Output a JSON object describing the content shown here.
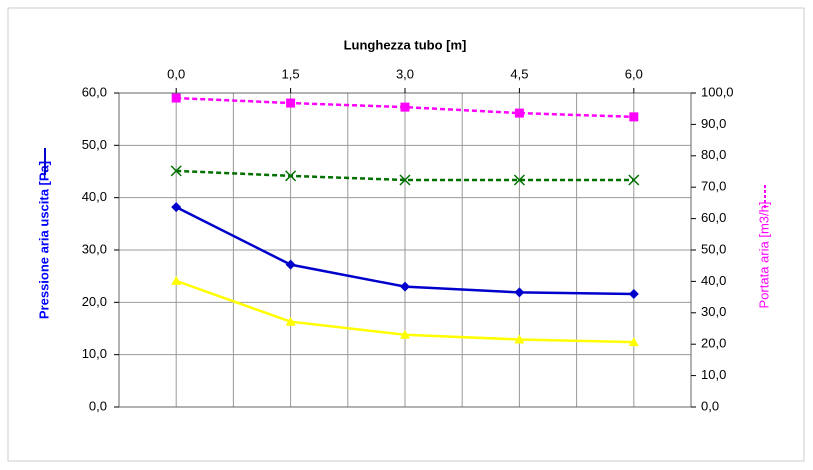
{
  "chart_data": {
    "type": "line",
    "xlabel": "Lunghezza tubo [m]",
    "ylabel": "Pressione aria uscita [Pa]",
    "y2label": "Portata aria [m3/h]",
    "x": [
      0,
      1.5,
      3,
      4.5,
      6
    ],
    "xlim": [
      -0.75,
      6.75
    ],
    "xticks": [
      {
        "value": 0,
        "label": "0,0"
      },
      {
        "value": 1.5,
        "label": "1,5"
      },
      {
        "value": 3,
        "label": "3,0"
      },
      {
        "value": 4.5,
        "label": "4,5"
      },
      {
        "value": 6,
        "label": "6,0"
      }
    ],
    "xminorgrid": [
      -0.75,
      0.75,
      2.25,
      3.75,
      5.25,
      6.75
    ],
    "ylim": [
      0,
      60
    ],
    "yticks": [
      {
        "value": 0,
        "label": "0,0"
      },
      {
        "value": 10,
        "label": "10,0"
      },
      {
        "value": 20,
        "label": "20,0"
      },
      {
        "value": 30,
        "label": "30,0"
      },
      {
        "value": 40,
        "label": "40,0"
      },
      {
        "value": 50,
        "label": "50,0"
      },
      {
        "value": 60,
        "label": "60,0"
      }
    ],
    "y2lim": [
      0,
      100
    ],
    "y2ticks": [
      {
        "value": 0,
        "label": "0,0"
      },
      {
        "value": 10,
        "label": "10,0"
      },
      {
        "value": 20,
        "label": "20,0"
      },
      {
        "value": 30,
        "label": "30,0"
      },
      {
        "value": 40,
        "label": "40,0"
      },
      {
        "value": 50,
        "label": "50,0"
      },
      {
        "value": 60,
        "label": "60,0"
      },
      {
        "value": 70,
        "label": "70,0"
      },
      {
        "value": 80,
        "label": "80,0"
      },
      {
        "value": 90,
        "label": "90,0"
      },
      {
        "value": 100,
        "label": "100,0"
      }
    ],
    "grid": true,
    "ylabel_color": "#0000ff",
    "y2label_color": "#ff00ff",
    "series": [
      {
        "color": "#ff00ff",
        "marker": "square",
        "dashed": true,
        "axis": "y2",
        "values": [
          98.4,
          96.8,
          95.5,
          93.6,
          92.4
        ]
      },
      {
        "color": "#007000",
        "marker": "x",
        "dashed": true,
        "axis": "y2",
        "values": [
          75.2,
          73.6,
          72.3,
          72.3,
          72.3
        ]
      },
      {
        "color": "#0000cc",
        "marker": "diamond",
        "dashed": false,
        "values": [
          38.2,
          27.2,
          23.0,
          21.9,
          21.6
        ]
      },
      {
        "color": "#ffff00",
        "marker": "triangle",
        "dashed": false,
        "values": [
          24.1,
          16.3,
          13.8,
          12.9,
          12.4
        ]
      }
    ]
  }
}
